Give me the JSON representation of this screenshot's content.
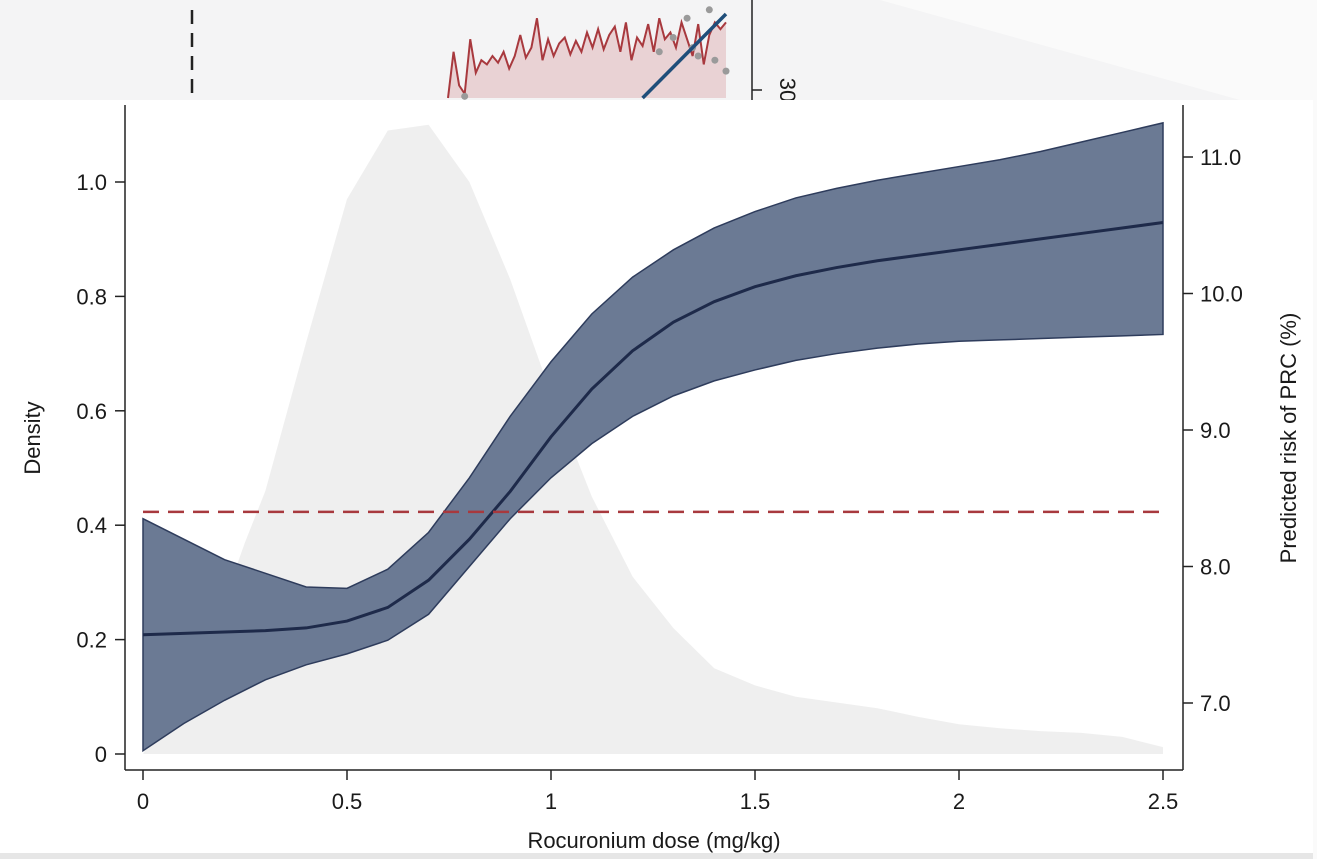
{
  "chart_data": [
    {
      "type": "area",
      "title": "",
      "xlabel": "Rocuronium dose (mg/kg)",
      "ylabel_left": "Density",
      "ylabel_right": "Predicted risk of PRC (%)",
      "xlim": [
        0,
        2.5
      ],
      "ylim_left": [
        0,
        1.1
      ],
      "ylim_right": [
        6.6,
        11.3
      ],
      "x_ticks": [
        0,
        0.5,
        1,
        1.5,
        2,
        2.5
      ],
      "x_tick_labels": [
        "0",
        "0.5",
        "1",
        "1.5",
        "2",
        "2.5"
      ],
      "y_left_ticks": [
        0,
        0.2,
        0.4,
        0.6,
        0.8,
        1.0
      ],
      "y_left_tick_labels": [
        "0",
        "0.2",
        "0.4",
        "0.6",
        "0.8",
        "1.0"
      ],
      "y_right_ticks": [
        7.0,
        8.0,
        9.0,
        10.0,
        11.0
      ],
      "y_right_tick_labels": [
        "7.0",
        "8.0",
        "9.0",
        "10.0",
        "11.0"
      ],
      "grid": false,
      "legend": "none",
      "colors": {
        "density": "#efefef",
        "ci_band": "#6b7a94",
        "ci_edge": "#2e3c5c",
        "fit_line": "#1e2a4a",
        "reference_line": "#a8393e"
      },
      "series": [
        {
          "role": "density",
          "axis": "left",
          "x": [
            0,
            0.1,
            0.2,
            0.25,
            0.3,
            0.4,
            0.5,
            0.6,
            0.7,
            0.8,
            0.9,
            1.0,
            1.1,
            1.2,
            1.3,
            1.4,
            1.5,
            1.6,
            1.7,
            1.8,
            1.9,
            2.0,
            2.1,
            2.2,
            2.3,
            2.4,
            2.5
          ],
          "values": [
            0.0,
            0.12,
            0.27,
            0.37,
            0.46,
            0.72,
            0.97,
            1.09,
            1.1,
            1.0,
            0.83,
            0.63,
            0.45,
            0.31,
            0.22,
            0.15,
            0.12,
            0.1,
            0.09,
            0.08,
            0.065,
            0.052,
            0.045,
            0.04,
            0.037,
            0.03,
            0.012
          ]
        },
        {
          "role": "ci_upper",
          "axis": "right",
          "x": [
            0,
            0.1,
            0.2,
            0.3,
            0.4,
            0.5,
            0.6,
            0.7,
            0.8,
            0.9,
            1.0,
            1.1,
            1.2,
            1.3,
            1.4,
            1.5,
            1.6,
            1.7,
            1.8,
            1.9,
            2.0,
            2.1,
            2.2,
            2.3,
            2.4,
            2.5
          ],
          "values": [
            8.35,
            8.2,
            8.05,
            7.95,
            7.85,
            7.84,
            7.98,
            8.25,
            8.65,
            9.1,
            9.5,
            9.85,
            10.12,
            10.32,
            10.48,
            10.6,
            10.7,
            10.77,
            10.83,
            10.88,
            10.93,
            10.98,
            11.04,
            11.11,
            11.18,
            11.25
          ]
        },
        {
          "role": "ci_lower",
          "axis": "right",
          "x": [
            0,
            0.1,
            0.2,
            0.3,
            0.4,
            0.5,
            0.6,
            0.7,
            0.8,
            0.9,
            1.0,
            1.1,
            1.2,
            1.3,
            1.4,
            1.5,
            1.6,
            1.7,
            1.8,
            1.9,
            2.0,
            2.1,
            2.2,
            2.3,
            2.4,
            2.5
          ],
          "values": [
            6.65,
            6.85,
            7.02,
            7.17,
            7.28,
            7.36,
            7.46,
            7.65,
            8.0,
            8.35,
            8.65,
            8.9,
            9.1,
            9.25,
            9.36,
            9.44,
            9.51,
            9.56,
            9.6,
            9.63,
            9.65,
            9.66,
            9.67,
            9.68,
            9.69,
            9.7
          ]
        },
        {
          "role": "fit",
          "axis": "right",
          "x": [
            0,
            0.1,
            0.2,
            0.3,
            0.4,
            0.5,
            0.6,
            0.7,
            0.8,
            0.9,
            1.0,
            1.1,
            1.2,
            1.3,
            1.4,
            1.5,
            1.6,
            1.7,
            1.8,
            1.9,
            2.0,
            2.1,
            2.2,
            2.3,
            2.4,
            2.5
          ],
          "values": [
            7.5,
            7.51,
            7.52,
            7.53,
            7.55,
            7.6,
            7.7,
            7.9,
            8.2,
            8.55,
            8.95,
            9.3,
            9.58,
            9.79,
            9.94,
            10.05,
            10.13,
            10.19,
            10.24,
            10.28,
            10.32,
            10.36,
            10.4,
            10.44,
            10.48,
            10.52
          ]
        },
        {
          "role": "reference",
          "axis": "right",
          "style": "dashed",
          "x": [
            0,
            2.5
          ],
          "values": [
            8.4,
            8.4
          ]
        }
      ]
    },
    {
      "type": "line",
      "title": "",
      "partially_visible": true,
      "y_tick_labels": [
        "30"
      ],
      "colors": {
        "series": "#a8393e",
        "area": "#e9d2d4",
        "trend": "#1f4e7a",
        "points": "#9a9a9a",
        "dashed": "#222222"
      },
      "series": [
        {
          "role": "jagged_line",
          "x": [
            0.0,
            0.02,
            0.04,
            0.06,
            0.08,
            0.1,
            0.12,
            0.14,
            0.16,
            0.18,
            0.2,
            0.22,
            0.24,
            0.26,
            0.28,
            0.3,
            0.32,
            0.34,
            0.36,
            0.38,
            0.4,
            0.42,
            0.44,
            0.46,
            0.48,
            0.5,
            0.52,
            0.54,
            0.56,
            0.58,
            0.6,
            0.62,
            0.64,
            0.66,
            0.68,
            0.7,
            0.72,
            0.74,
            0.76,
            0.78,
            0.8,
            0.82,
            0.84,
            0.86,
            0.88,
            0.9,
            0.92,
            0.94,
            0.96,
            0.98,
            1.0
          ],
          "values": [
            0.0,
            0.55,
            0.15,
            0.05,
            0.7,
            0.3,
            0.45,
            0.4,
            0.5,
            0.42,
            0.55,
            0.35,
            0.5,
            0.75,
            0.48,
            0.6,
            0.95,
            0.45,
            0.7,
            0.5,
            0.65,
            0.72,
            0.52,
            0.68,
            0.55,
            0.78,
            0.6,
            0.82,
            0.58,
            0.75,
            0.85,
            0.55,
            0.9,
            0.45,
            0.72,
            0.62,
            0.88,
            0.55,
            0.95,
            0.7,
            0.78,
            0.6,
            0.9,
            0.7,
            0.5,
            0.88,
            0.4,
            0.75,
            0.9,
            0.82,
            0.9
          ]
        },
        {
          "role": "scatter_points",
          "x": [
            0.06,
            0.76,
            0.81,
            0.86,
            0.88,
            0.9,
            0.94,
            0.96,
            1.0
          ],
          "values": [
            0.02,
            0.55,
            0.72,
            0.95,
            0.6,
            0.5,
            1.05,
            0.45,
            0.32
          ]
        },
        {
          "role": "trend_line",
          "x": [
            0.7,
            1.0
          ],
          "values": [
            0.0,
            1.0
          ]
        }
      ]
    }
  ]
}
